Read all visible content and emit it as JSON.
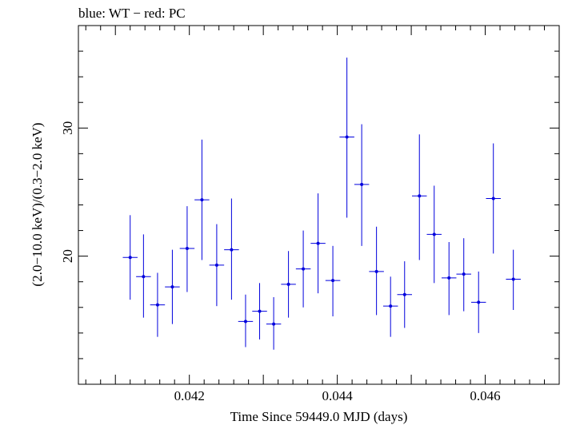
{
  "chart_data": {
    "type": "scatter",
    "title": "blue: WT − red: PC",
    "xlabel": "Time Since 59449.0 MJD (days)",
    "ylabel": "(2.0−10.0 keV)/(0.3−2.0 keV)",
    "xlim": [
      0.0405,
      0.047
    ],
    "ylim": [
      10.0,
      38.0
    ],
    "x_ticks": [
      {
        "value": 0.042,
        "label": "0.042"
      },
      {
        "value": 0.044,
        "label": "0.044"
      },
      {
        "value": 0.046,
        "label": "0.046"
      }
    ],
    "y_ticks": [
      {
        "value": 20,
        "label": "20"
      },
      {
        "value": 30,
        "label": "30"
      }
    ],
    "grid": false,
    "series": [
      {
        "color": "#0000dd",
        "x_halfwidth": 0.0001,
        "points": [
          {
            "x": 0.0412,
            "y": 19.9,
            "ylo": 16.6,
            "yhi": 23.2
          },
          {
            "x": 0.04138,
            "y": 18.4,
            "ylo": 15.2,
            "yhi": 21.7
          },
          {
            "x": 0.04157,
            "y": 16.2,
            "ylo": 13.7,
            "yhi": 18.7
          },
          {
            "x": 0.04177,
            "y": 17.6,
            "ylo": 14.7,
            "yhi": 20.5
          },
          {
            "x": 0.04197,
            "y": 20.6,
            "ylo": 17.2,
            "yhi": 23.9
          },
          {
            "x": 0.04217,
            "y": 24.4,
            "ylo": 19.7,
            "yhi": 29.1
          },
          {
            "x": 0.04237,
            "y": 19.3,
            "ylo": 16.1,
            "yhi": 22.5
          },
          {
            "x": 0.04257,
            "y": 20.5,
            "ylo": 16.6,
            "yhi": 24.5
          },
          {
            "x": 0.04276,
            "y": 14.9,
            "ylo": 12.9,
            "yhi": 17.0
          },
          {
            "x": 0.04295,
            "y": 15.7,
            "ylo": 13.5,
            "yhi": 17.9
          },
          {
            "x": 0.04314,
            "y": 14.7,
            "ylo": 12.7,
            "yhi": 16.8
          },
          {
            "x": 0.04334,
            "y": 17.8,
            "ylo": 15.2,
            "yhi": 20.4
          },
          {
            "x": 0.04354,
            "y": 19.0,
            "ylo": 16.0,
            "yhi": 22.0
          },
          {
            "x": 0.04374,
            "y": 21.0,
            "ylo": 17.1,
            "yhi": 24.9
          },
          {
            "x": 0.04394,
            "y": 18.1,
            "ylo": 15.3,
            "yhi": 20.8
          },
          {
            "x": 0.04413,
            "y": 29.3,
            "ylo": 23.0,
            "yhi": 35.5
          },
          {
            "x": 0.04433,
            "y": 25.6,
            "ylo": 20.8,
            "yhi": 30.3
          },
          {
            "x": 0.04453,
            "y": 18.8,
            "ylo": 15.4,
            "yhi": 22.3
          },
          {
            "x": 0.04472,
            "y": 16.1,
            "ylo": 13.7,
            "yhi": 18.4
          },
          {
            "x": 0.04491,
            "y": 17.0,
            "ylo": 14.4,
            "yhi": 19.6
          },
          {
            "x": 0.04511,
            "y": 24.7,
            "ylo": 19.7,
            "yhi": 29.5
          },
          {
            "x": 0.04531,
            "y": 21.7,
            "ylo": 17.9,
            "yhi": 25.5
          },
          {
            "x": 0.04551,
            "y": 18.3,
            "ylo": 15.4,
            "yhi": 21.1
          },
          {
            "x": 0.04571,
            "y": 18.6,
            "ylo": 15.7,
            "yhi": 21.4
          },
          {
            "x": 0.04591,
            "y": 16.4,
            "ylo": 14.0,
            "yhi": 18.8
          },
          {
            "x": 0.04611,
            "y": 24.5,
            "ylo": 20.2,
            "yhi": 28.8
          },
          {
            "x": 0.04638,
            "y": 18.2,
            "ylo": 15.8,
            "yhi": 20.5
          }
        ]
      }
    ]
  }
}
